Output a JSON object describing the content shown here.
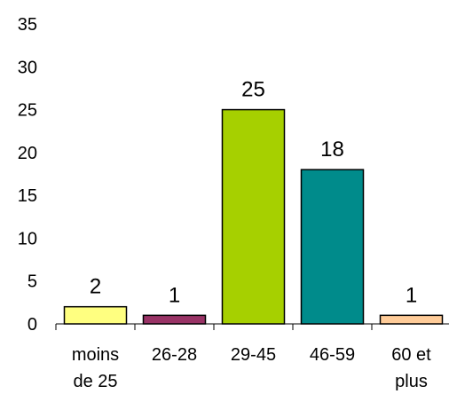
{
  "chart_data": {
    "type": "bar",
    "categories": [
      [
        "moins",
        "de 25"
      ],
      [
        "26-28"
      ],
      [
        "29-45"
      ],
      [
        "46-59"
      ],
      [
        "60 et",
        "plus"
      ]
    ],
    "values": [
      2,
      1,
      25,
      18,
      1
    ],
    "colors": [
      "#FFFF80",
      "#993366",
      "#A6D000",
      "#008B8B",
      "#FFCC99"
    ],
    "ylim": [
      0,
      35
    ],
    "yticks": [
      0,
      5,
      10,
      15,
      20,
      25,
      30,
      35
    ],
    "grid": false,
    "legend": "none",
    "title": "",
    "xlabel": "",
    "ylabel": ""
  }
}
